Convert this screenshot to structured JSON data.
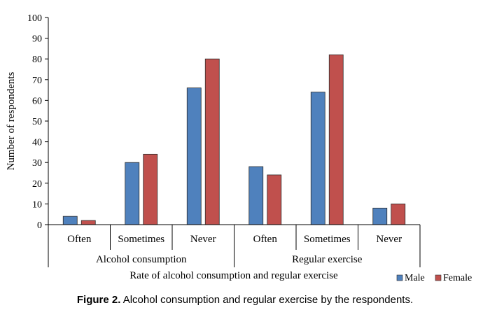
{
  "caption": {
    "prefix": "Figure 2.",
    "text": " Alcohol consumption and regular exercise by the respondents."
  },
  "chart_data": {
    "type": "bar",
    "ylabel": "Number of respondents",
    "xlabel": "Rate of alcohol consumption and regular exercise",
    "ylim": [
      0,
      100
    ],
    "yticks": [
      0,
      10,
      20,
      30,
      40,
      50,
      60,
      70,
      80,
      90,
      100
    ],
    "groups": [
      {
        "label": "Alcohol consumption",
        "categories": [
          "Often",
          "Sometimes",
          "Never"
        ]
      },
      {
        "label": "Regular exercise",
        "categories": [
          "Often",
          "Sometimes",
          "Never"
        ]
      }
    ],
    "series": [
      {
        "name": "Male",
        "color": "#4f81bd",
        "values": [
          4,
          30,
          66,
          28,
          64,
          8
        ]
      },
      {
        "name": "Female",
        "color": "#c0504d",
        "values": [
          2,
          34,
          80,
          24,
          82,
          10
        ]
      }
    ],
    "legend_position": "bottom-right",
    "grid": false
  }
}
